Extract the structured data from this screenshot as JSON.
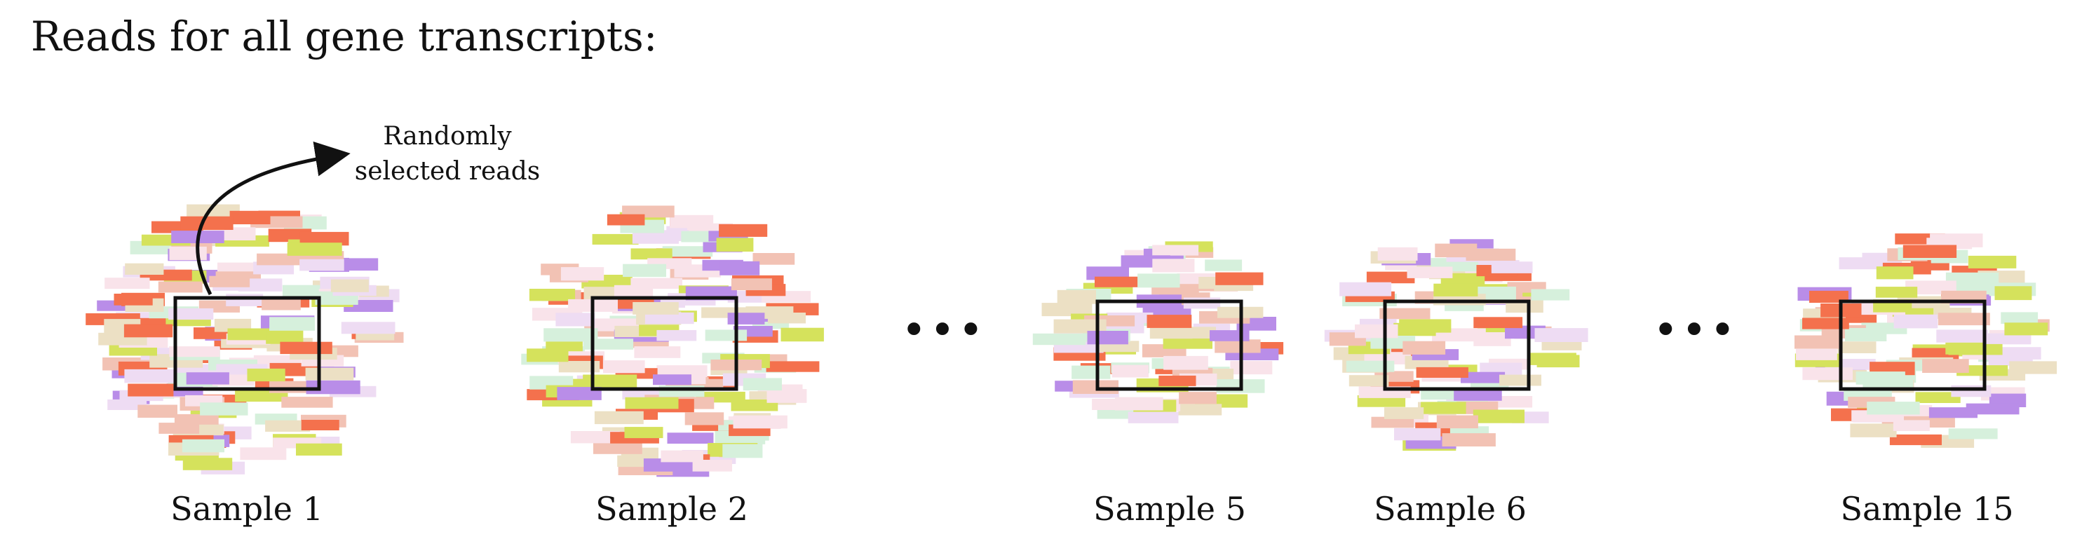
{
  "title": "Reads for all gene transcripts:",
  "annotation": {
    "line1": "Randomly",
    "line2": "selected reads"
  },
  "ellipsis": "•••",
  "read_colors": {
    "red": "#f4714d",
    "purple": "#b98de8",
    "lime": "#d5e25c",
    "pink": "#f2c2b4",
    "beige": "#ece0c4",
    "lavender": "#eedcf3",
    "mint": "#d6f0dc",
    "blush": "#f9e3ea"
  },
  "selection_color": "#111111",
  "samples": [
    {
      "label": "Sample 1"
    },
    {
      "label": "Sample 2"
    },
    {
      "label": "Sample 5"
    },
    {
      "label": "Sample 6"
    },
    {
      "label": "Sample 15"
    }
  ]
}
